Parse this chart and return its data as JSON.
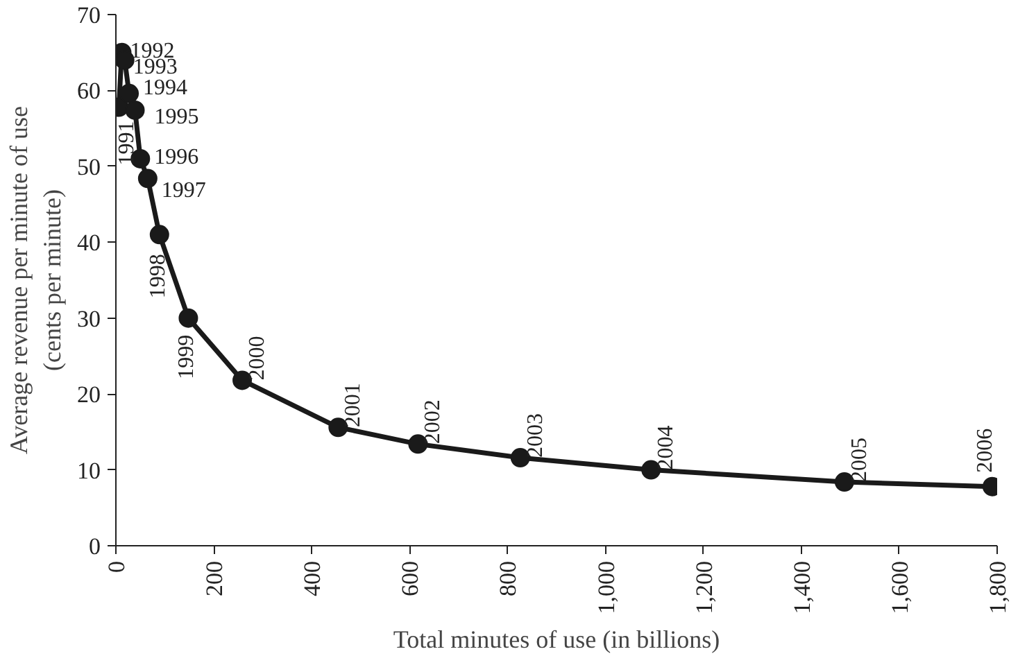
{
  "chart_data": {
    "type": "line",
    "xlabel": "Total minutes of use (in billions)",
    "ylabel": "Average revenue per minute of use\n(cents per minute)",
    "x": [
      6,
      12,
      18,
      27,
      39,
      50,
      65,
      89,
      148,
      258,
      454,
      617,
      826,
      1093,
      1488,
      1790
    ],
    "series": [
      {
        "color": "#1a1a1a",
        "values": [
          57.8,
          65,
          64,
          59.6,
          57.4,
          51,
          48.4,
          41,
          30,
          21.8,
          15.6,
          13.4,
          11.6,
          10,
          8.4,
          7.8
        ]
      }
    ],
    "marker": "circle",
    "grid": false,
    "xlim": [
      0,
      1800
    ],
    "ylim": [
      0,
      70
    ],
    "xticks": [
      0,
      200,
      400,
      600,
      800,
      {
        "value": 1000,
        "label": "1,000"
      },
      {
        "value": 1200,
        "label": "1,200"
      },
      {
        "value": 1400,
        "label": "1,400"
      },
      {
        "value": 1600,
        "label": "1,600"
      },
      {
        "value": 1800,
        "label": "1,800"
      }
    ],
    "yticks": [
      0,
      10,
      20,
      30,
      40,
      50,
      60,
      70
    ],
    "annotations": [
      {
        "text": "1991",
        "x": 6,
        "y": 57.8
      },
      {
        "text": "1992",
        "x": 12,
        "y": 65
      },
      {
        "text": "1993",
        "x": 18,
        "y": 64
      },
      {
        "text": "1994",
        "x": 27,
        "y": 59.6
      },
      {
        "text": "1995",
        "x": 39,
        "y": 57.4
      },
      {
        "text": "1996",
        "x": 50,
        "y": 51
      },
      {
        "text": "1997",
        "x": 65,
        "y": 48.4
      },
      {
        "text": "1998",
        "x": 89,
        "y": 41
      },
      {
        "text": "1999",
        "x": 148,
        "y": 30
      },
      {
        "text": "2000",
        "x": 258,
        "y": 21.8
      },
      {
        "text": "2001",
        "x": 454,
        "y": 15.6
      },
      {
        "text": "2002",
        "x": 617,
        "y": 13.4
      },
      {
        "text": "2003",
        "x": 826,
        "y": 11.6
      },
      {
        "text": "2004",
        "x": 1093,
        "y": 10
      },
      {
        "text": "2005",
        "x": 1488,
        "y": 8.4
      },
      {
        "text": "2006",
        "x": 1790,
        "y": 7.8
      }
    ]
  }
}
